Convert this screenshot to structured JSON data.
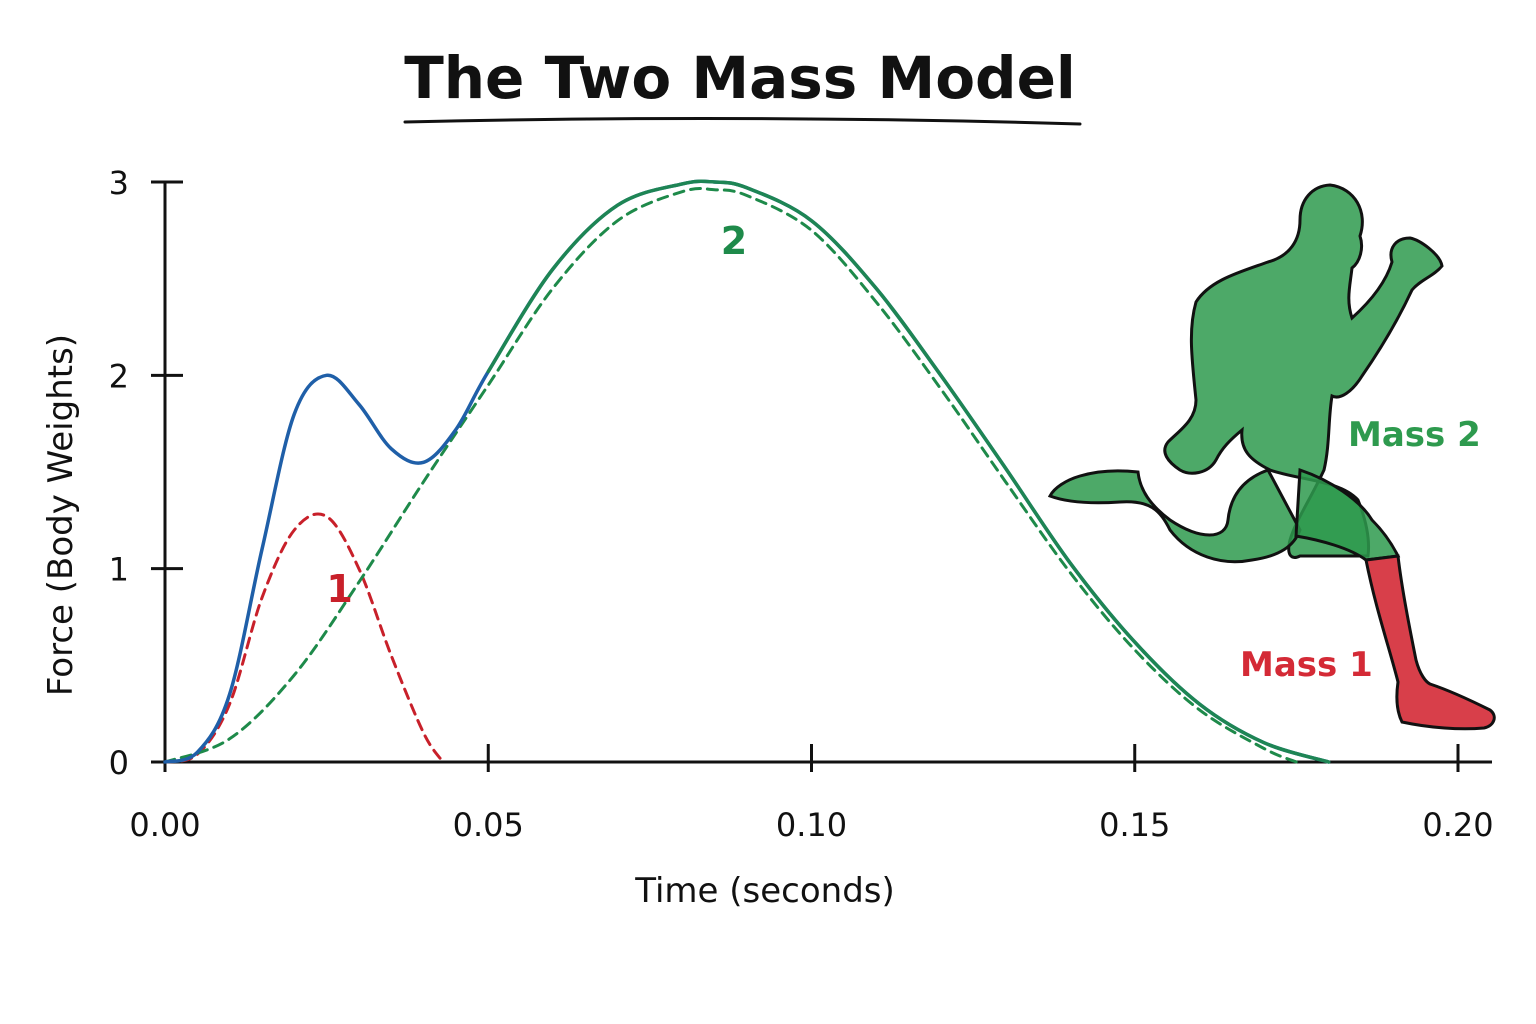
{
  "chart_data": {
    "type": "line",
    "title": "The Two Mass Model",
    "xlabel": "Time (seconds)",
    "ylabel": "Force (Body Weights)",
    "xlim": [
      0,
      0.2
    ],
    "ylim": [
      0,
      3
    ],
    "x_ticks": [
      "0.00",
      "0.05",
      "0.10",
      "0.15",
      "0.20"
    ],
    "y_ticks": [
      "0",
      "1",
      "2",
      "3"
    ],
    "grid": false,
    "series": [
      {
        "name": "",
        "style": "solid",
        "color": "#1f5fa8",
        "x": [
          0,
          0.005,
          0.01,
          0.015,
          0.02,
          0.025,
          0.03,
          0.035,
          0.04,
          0.045,
          0.05,
          0.06,
          0.07,
          0.08,
          0.085,
          0.09,
          0.1,
          0.11,
          0.12,
          0.13,
          0.14,
          0.15,
          0.16,
          0.17,
          0.18
        ],
        "y": [
          0,
          0.05,
          0.35,
          1.1,
          1.8,
          2.0,
          1.85,
          1.62,
          1.55,
          1.72,
          2.02,
          2.55,
          2.88,
          2.99,
          3.0,
          2.97,
          2.8,
          2.45,
          2.0,
          1.52,
          1.03,
          0.62,
          0.3,
          0.1,
          0.0
        ]
      },
      {
        "name": "1",
        "style": "dashed",
        "color": "#c8202a",
        "x": [
          0,
          0.005,
          0.01,
          0.015,
          0.02,
          0.025,
          0.03,
          0.035,
          0.04,
          0.043
        ],
        "y": [
          0,
          0.04,
          0.3,
          0.85,
          1.2,
          1.27,
          1.0,
          0.55,
          0.15,
          0.0
        ]
      },
      {
        "name": "2",
        "style": "dashed",
        "color": "#1e8a4a",
        "x": [
          0,
          0.01,
          0.02,
          0.03,
          0.04,
          0.05,
          0.06,
          0.07,
          0.08,
          0.085,
          0.09,
          0.1,
          0.11,
          0.12,
          0.13,
          0.14,
          0.15,
          0.16,
          0.17,
          0.175
        ],
        "y": [
          0,
          0.12,
          0.45,
          0.93,
          1.45,
          1.95,
          2.45,
          2.8,
          2.95,
          2.96,
          2.93,
          2.75,
          2.38,
          1.93,
          1.45,
          0.98,
          0.58,
          0.27,
          0.07,
          0.0
        ]
      }
    ],
    "annotations": [
      {
        "text": "1",
        "x": 0.027,
        "y": 0.9,
        "color": "#c8202a"
      },
      {
        "text": "2",
        "x": 0.088,
        "y": 2.7,
        "color": "#1e8a4a"
      }
    ]
  },
  "figure": {
    "labels": {
      "mass2": "Mass 2",
      "mass1": "Mass 1"
    },
    "colors": {
      "mass2": "#2e9a4e",
      "mass1": "#d42a36",
      "outline": "#111111"
    }
  }
}
